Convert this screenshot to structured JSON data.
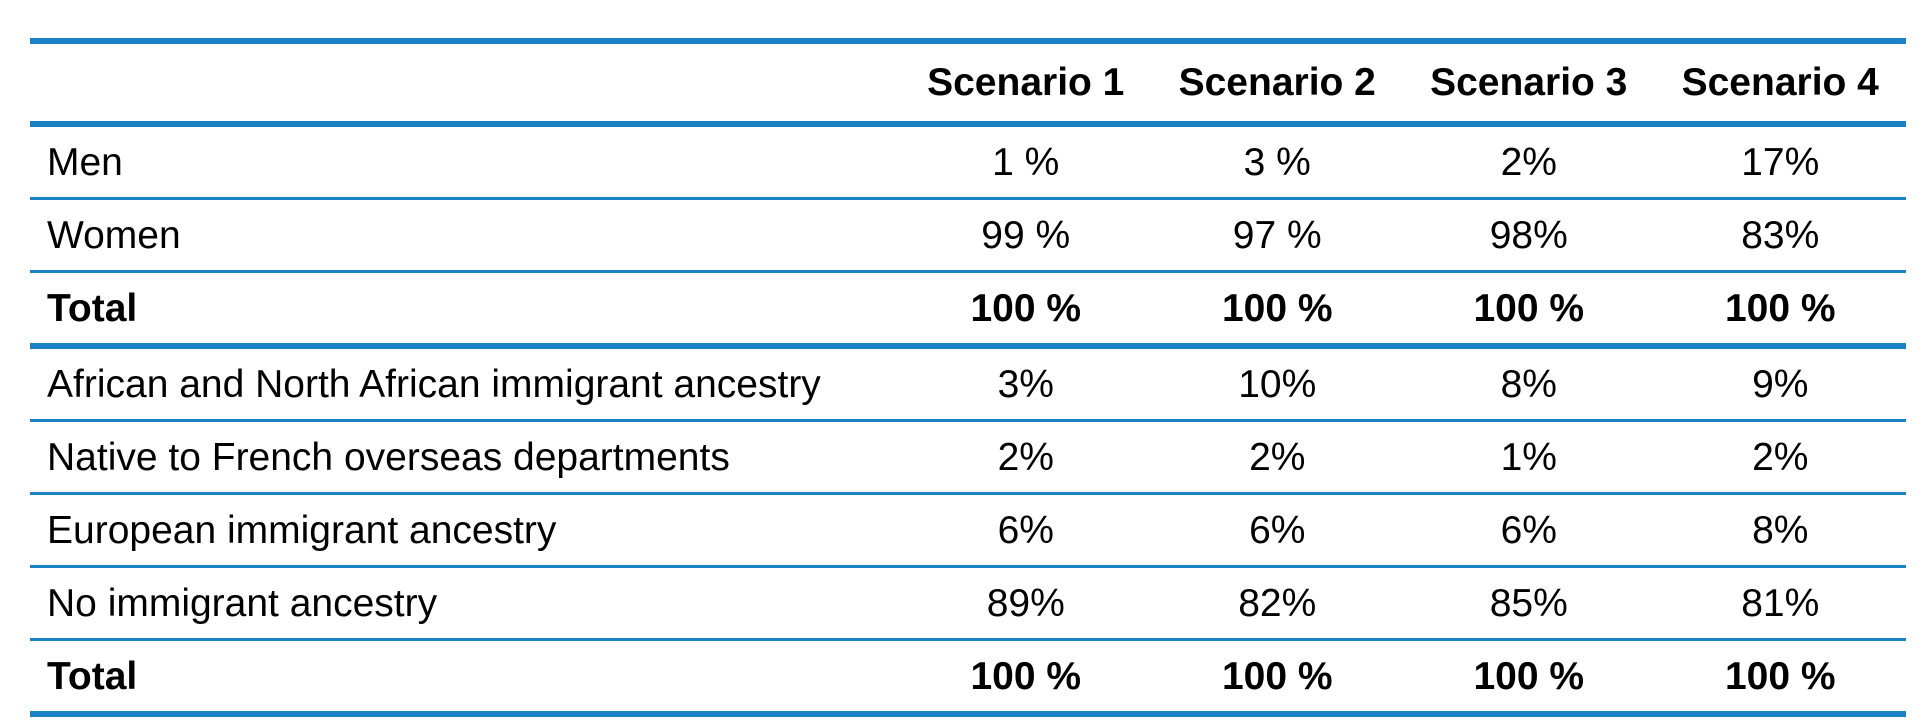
{
  "table": {
    "columns": [
      "Scenario 1",
      "Scenario 2",
      "Scenario 3",
      "Scenario 4"
    ],
    "rows": [
      {
        "label": "Men",
        "values": [
          "1 %",
          "3 %",
          "2%",
          "17%"
        ]
      },
      {
        "label": "Women",
        "values": [
          "99 %",
          "97 %",
          "98%",
          "83%"
        ]
      },
      {
        "label": "Total",
        "values": [
          "100 %",
          "100 %",
          "100 %",
          "100 %"
        ]
      },
      {
        "label": "African and North African immigrant ancestry",
        "values": [
          "3%",
          "10%",
          "8%",
          "9%"
        ]
      },
      {
        "label": "Native to French overseas departments",
        "values": [
          "2%",
          "2%",
          "1%",
          "2%"
        ]
      },
      {
        "label": "European immigrant ancestry",
        "values": [
          "6%",
          "6%",
          "6%",
          "8%"
        ]
      },
      {
        "label": "No immigrant ancestry",
        "values": [
          "89%",
          "82%",
          "85%",
          "81%"
        ]
      },
      {
        "label": "Total",
        "values": [
          "100 %",
          "100 %",
          "100 %",
          "100 %"
        ]
      }
    ]
  },
  "colors": {
    "rule": "#1a82c4"
  }
}
